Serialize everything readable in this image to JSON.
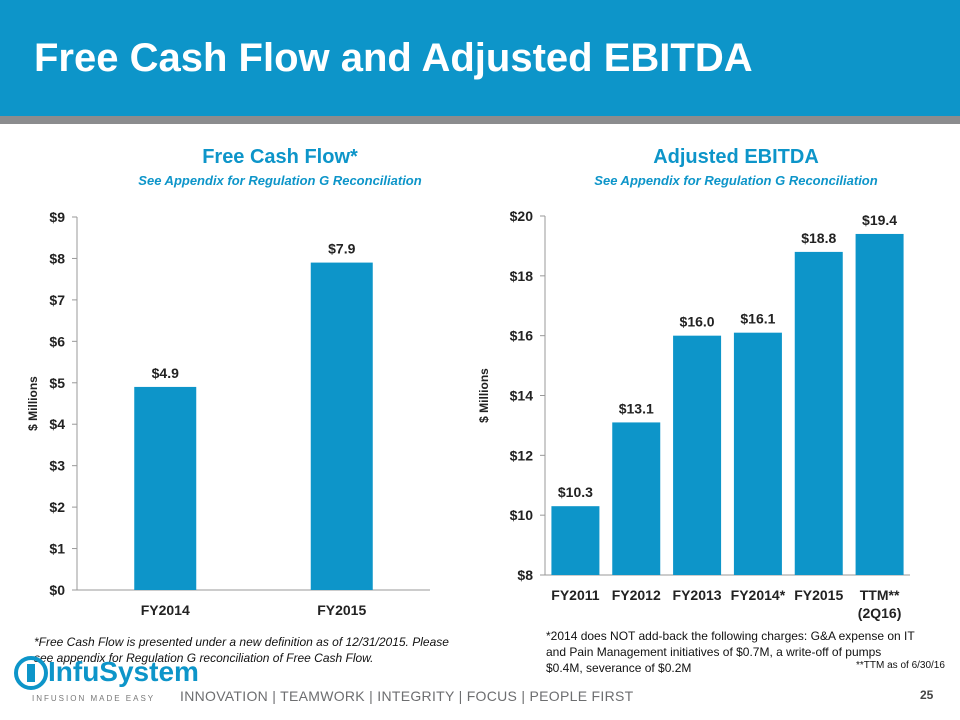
{
  "title": "Free Cash Flow and Adjusted EBITDA",
  "chart_data": [
    {
      "type": "bar",
      "title": "Free Cash Flow*",
      "subtitle": "See Appendix for Regulation G Reconciliation",
      "ylabel": "$ Millions",
      "categories": [
        "FY2014",
        "FY2015"
      ],
      "values": [
        4.9,
        7.9
      ],
      "value_labels": [
        "$4.9",
        "$7.9"
      ],
      "ylim": [
        0,
        9
      ],
      "yticks": [
        0,
        1,
        2,
        3,
        4,
        5,
        6,
        7,
        8,
        9
      ],
      "ytick_labels": [
        "$0",
        "$1",
        "$2",
        "$3",
        "$4",
        "$5",
        "$6",
        "$7",
        "$8",
        "$9"
      ],
      "bar_color": "#0d95c9"
    },
    {
      "type": "bar",
      "title": "Adjusted EBITDA",
      "subtitle": "See Appendix for Regulation G Reconciliation",
      "ylabel": "$ Millions",
      "categories": [
        "FY2011",
        "FY2012",
        "FY2013",
        "FY2014*",
        "FY2015",
        "TTM**"
      ],
      "category_sublabels": [
        "",
        "",
        "",
        "",
        "",
        "(2Q16)"
      ],
      "values": [
        10.3,
        13.1,
        16.0,
        16.1,
        18.8,
        19.4
      ],
      "value_labels": [
        "$10.3",
        "$13.1",
        "$16.0",
        "$16.1",
        "$18.8",
        "$19.4"
      ],
      "ylim": [
        8,
        20
      ],
      "yticks": [
        8,
        10,
        12,
        14,
        16,
        18,
        20
      ],
      "ytick_labels": [
        "$8",
        "$10",
        "$12",
        "$14",
        "$16",
        "$18",
        "$20"
      ],
      "bar_color": "#0d95c9"
    }
  ],
  "notes": {
    "fcf_line1": "*Free Cash Flow is presented under a new definition as of 12/31/2015.  Please",
    "fcf_line2": "see appendix for Regulation G reconciliation of Free Cash Flow.",
    "ebitda_line1": "*2014 does NOT add-back the following charges: G&A expense on IT",
    "ebitda_line2": "and Pain Management initiatives of $0.7M, a write-off of pumps",
    "ebitda_line3": "$0.4M, severance of $0.2M",
    "ttm": "**TTM as of 6/30/16"
  },
  "footer": {
    "logo_text": "InfuSystem",
    "logo_tagline": "INFUSION MADE EASY",
    "tagline": "INNOVATION  |  TEAMWORK  |  INTEGRITY  |  FOCUS  |  PEOPLE FIRST",
    "page_number": "25"
  }
}
